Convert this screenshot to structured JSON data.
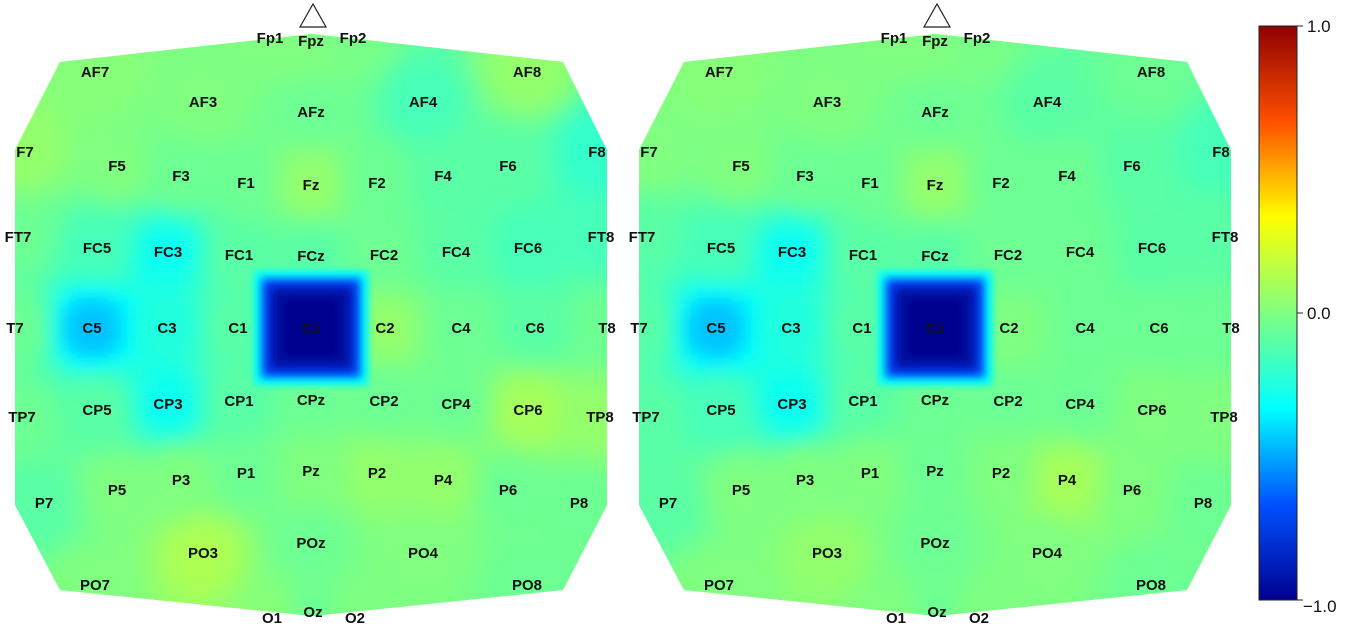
{
  "chart_data": {
    "type": "heatmap",
    "colorbar": {
      "min_label": "−1.0",
      "mid_label": "0.0",
      "max_label": "1.0",
      "range": [
        -1.0,
        1.0
      ],
      "colormap": "jet",
      "stops": [
        "#00008f",
        "#0050ff",
        "#00ffff",
        "#80ff80",
        "#ffff00",
        "#ff5000",
        "#8f0000"
      ]
    },
    "nose_marker": "triangle",
    "electrodes": [
      "Fp1",
      "Fpz",
      "Fp2",
      "AF7",
      "AF3",
      "AFz",
      "AF4",
      "AF8",
      "F7",
      "F5",
      "F3",
      "F1",
      "Fz",
      "F2",
      "F4",
      "F6",
      "F8",
      "FT7",
      "FC5",
      "FC3",
      "FC1",
      "FCz",
      "FC2",
      "FC4",
      "FC6",
      "FT8",
      "T7",
      "C5",
      "C3",
      "C1",
      "Cz",
      "C2",
      "C4",
      "C6",
      "T8",
      "TP7",
      "CP5",
      "CP3",
      "CP1",
      "CPz",
      "CP2",
      "CP4",
      "CP6",
      "TP8",
      "P7",
      "P5",
      "P3",
      "P1",
      "Pz",
      "P2",
      "P4",
      "P6",
      "P8",
      "PO7",
      "PO3",
      "POz",
      "PO4",
      "PO8",
      "O1",
      "Oz",
      "O2"
    ],
    "maps": [
      {
        "values": {
          "Fp1": 0.0,
          "Fpz": 0.0,
          "Fp2": -0.02,
          "AF7": 0.02,
          "AF3": 0.0,
          "AFz": -0.05,
          "AF4": -0.15,
          "AF8": 0.05,
          "F7": 0.05,
          "F5": 0.0,
          "F3": -0.05,
          "F1": -0.05,
          "Fz": 0.05,
          "F2": -0.05,
          "F4": -0.1,
          "F6": -0.1,
          "F8": -0.2,
          "FT7": -0.05,
          "FC5": -0.15,
          "FC3": -0.3,
          "FC1": -0.1,
          "FCz": -0.1,
          "FC2": -0.05,
          "FC4": -0.1,
          "FC6": -0.15,
          "FT8": -0.15,
          "T7": -0.05,
          "C5": -0.45,
          "C3": -0.25,
          "C1": -0.1,
          "Cz": -1.0,
          "C2": 0.05,
          "C4": -0.05,
          "C6": -0.1,
          "T8": -0.05,
          "TP7": -0.05,
          "CP5": -0.1,
          "CP3": -0.3,
          "CP1": -0.1,
          "CPz": -0.05,
          "CP2": -0.05,
          "CP4": -0.05,
          "CP6": 0.1,
          "TP8": 0.05,
          "P7": -0.1,
          "P5": 0.0,
          "P3": 0.0,
          "P1": -0.05,
          "Pz": 0.0,
          "P2": 0.05,
          "P4": 0.05,
          "P6": -0.05,
          "P8": -0.05,
          "PO7": 0.0,
          "PO3": 0.12,
          "POz": -0.05,
          "PO4": 0.0,
          "PO8": -0.05,
          "O1": 0.02,
          "Oz": -0.05,
          "O2": 0.0
        }
      },
      {
        "values": {
          "Fp1": 0.0,
          "Fpz": 0.0,
          "Fp2": -0.02,
          "AF7": 0.02,
          "AF3": 0.0,
          "AFz": -0.05,
          "AF4": -0.1,
          "AF8": -0.05,
          "F7": 0.0,
          "F5": 0.0,
          "F3": -0.05,
          "F1": -0.05,
          "Fz": 0.05,
          "F2": -0.05,
          "F4": -0.05,
          "F6": -0.1,
          "F8": -0.15,
          "FT7": -0.1,
          "FC5": -0.15,
          "FC3": -0.3,
          "FC1": -0.1,
          "FCz": -0.1,
          "FC2": -0.05,
          "FC4": -0.05,
          "FC6": -0.1,
          "FT8": -0.1,
          "T7": -0.1,
          "C5": -0.45,
          "C3": -0.25,
          "C1": -0.1,
          "Cz": -1.0,
          "C2": 0.0,
          "C4": -0.05,
          "C6": -0.05,
          "T8": -0.05,
          "TP7": -0.1,
          "CP5": -0.15,
          "CP3": -0.3,
          "CP1": -0.1,
          "CPz": -0.05,
          "CP2": -0.05,
          "CP4": -0.05,
          "CP6": 0.0,
          "TP8": 0.0,
          "P7": -0.1,
          "P5": 0.0,
          "P3": 0.0,
          "P1": 0.0,
          "Pz": -0.05,
          "P2": 0.0,
          "P4": 0.1,
          "P6": 0.0,
          "P8": -0.05,
          "PO7": 0.0,
          "PO3": 0.05,
          "POz": -0.05,
          "PO4": 0.0,
          "PO8": -0.05,
          "O1": 0.0,
          "Oz": -0.05,
          "O2": 0.0
        }
      }
    ]
  }
}
